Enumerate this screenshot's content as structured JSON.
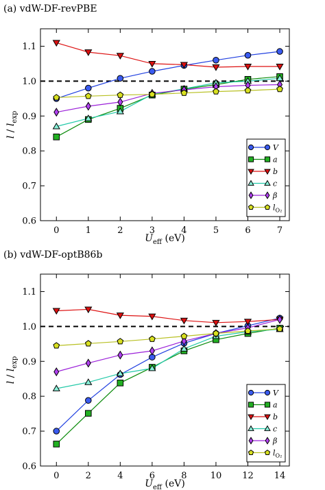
{
  "chart_data": [
    {
      "type": "line",
      "title": "(a) vdW-DF-revPBE",
      "xlabel_main": "U",
      "xlabel_sub": "eff",
      "xlabel_unit": " (eV)",
      "ylabel_main": "l",
      "ylabel_sep": " / ",
      "ylabel_l2": "l",
      "ylabel_sub": "exp",
      "xlim": [
        -0.5,
        7.3
      ],
      "ylim": [
        0.6,
        1.15
      ],
      "xticks": [
        "0",
        "1",
        "2",
        "3",
        "4",
        "5",
        "6",
        "7"
      ],
      "xtick_values": [
        0,
        1,
        2,
        3,
        4,
        5,
        6,
        7
      ],
      "yticks": [
        "0.6",
        "0.7",
        "0.8",
        "0.9",
        "1.0",
        "1.1"
      ],
      "ytick_values": [
        0.6,
        0.7,
        0.8,
        0.9,
        1.0,
        1.1
      ],
      "reference_line": 1.0,
      "legend_position": "lower-right",
      "x": [
        0,
        1,
        2,
        3,
        4,
        5,
        6,
        7
      ],
      "series": [
        {
          "name": "V",
          "sub": "",
          "marker": "circle",
          "color": "#1f3fe0",
          "fill": "#3a5bf0",
          "values": [
            0.95,
            0.98,
            1.008,
            1.028,
            1.045,
            1.06,
            1.074,
            1.085
          ]
        },
        {
          "name": "a",
          "sub": "",
          "marker": "square",
          "color": "#0a8a0a",
          "fill": "#22b022",
          "values": [
            0.84,
            0.89,
            0.922,
            0.96,
            0.977,
            0.99,
            1.005,
            1.013
          ]
        },
        {
          "name": "b",
          "sub": "",
          "marker": "triangle-down",
          "color": "#dd1111",
          "fill": "#dd1111",
          "values": [
            1.11,
            1.083,
            1.073,
            1.05,
            1.047,
            1.04,
            1.042,
            1.042
          ]
        },
        {
          "name": "c",
          "sub": "",
          "marker": "triangle-up",
          "color": "#22c9a8",
          "fill": "#88f0d8",
          "values": [
            0.87,
            0.893,
            0.913,
            0.962,
            0.978,
            0.995,
            1.0,
            1.008
          ]
        },
        {
          "name": "β",
          "sub": "",
          "marker": "diamond",
          "color": "#9b20d9",
          "fill": "#b040f0",
          "values": [
            0.911,
            0.928,
            0.94,
            0.965,
            0.975,
            0.984,
            0.988,
            0.99
          ]
        },
        {
          "name": "l",
          "sub": "O₂",
          "marker": "pentagon",
          "color": "#b8c022",
          "fill": "#d8e020",
          "values": [
            0.953,
            0.957,
            0.96,
            0.962,
            0.966,
            0.97,
            0.973,
            0.977
          ]
        }
      ]
    },
    {
      "type": "line",
      "title": "(b) vdW-DF-optB86b",
      "xlabel_main": "U",
      "xlabel_sub": "eff",
      "xlabel_unit": " (eV)",
      "ylabel_main": "l",
      "ylabel_sep": " / ",
      "ylabel_l2": "l",
      "ylabel_sub": "exp",
      "xlim": [
        -1.0,
        14.6
      ],
      "ylim": [
        0.6,
        1.15
      ],
      "xticks": [
        "0",
        "2",
        "4",
        "6",
        "8",
        "10",
        "12",
        "14"
      ],
      "xtick_values": [
        0,
        2,
        4,
        6,
        8,
        10,
        12,
        14
      ],
      "yticks": [
        "0.6",
        "0.7",
        "0.8",
        "0.9",
        "1.0",
        "1.1"
      ],
      "ytick_values": [
        0.6,
        0.7,
        0.8,
        0.9,
        1.0,
        1.1
      ],
      "reference_line": 1.0,
      "legend_position": "lower-right",
      "x": [
        0,
        2,
        4,
        6,
        8,
        10,
        12,
        14
      ],
      "series": [
        {
          "name": "V",
          "sub": "",
          "marker": "circle",
          "color": "#1f3fe0",
          "fill": "#3a5bf0",
          "values": [
            0.7,
            0.788,
            0.862,
            0.912,
            0.952,
            0.98,
            1.002,
            1.024
          ]
        },
        {
          "name": "a",
          "sub": "",
          "marker": "square",
          "color": "#0a8a0a",
          "fill": "#22b022",
          "values": [
            0.663,
            0.751,
            0.838,
            0.883,
            0.93,
            0.962,
            0.98,
            0.995
          ]
        },
        {
          "name": "b",
          "sub": "",
          "marker": "triangle-down",
          "color": "#dd1111",
          "fill": "#dd1111",
          "values": [
            1.045,
            1.049,
            1.032,
            1.029,
            1.017,
            1.011,
            1.014,
            1.02
          ]
        },
        {
          "name": "c",
          "sub": "",
          "marker": "triangle-up",
          "color": "#22c9a8",
          "fill": "#88f0d8",
          "values": [
            0.822,
            0.84,
            0.865,
            0.88,
            0.936,
            0.972,
            0.985,
            0.992
          ]
        },
        {
          "name": "β",
          "sub": "",
          "marker": "diamond",
          "color": "#9b20d9",
          "fill": "#b040f0",
          "values": [
            0.87,
            0.895,
            0.918,
            0.93,
            0.958,
            0.98,
            0.996,
            1.02
          ]
        },
        {
          "name": "l",
          "sub": "O₂",
          "marker": "pentagon",
          "color": "#b8c022",
          "fill": "#d8e020",
          "values": [
            0.945,
            0.951,
            0.957,
            0.964,
            0.972,
            0.98,
            0.987,
            0.993
          ]
        }
      ]
    }
  ]
}
